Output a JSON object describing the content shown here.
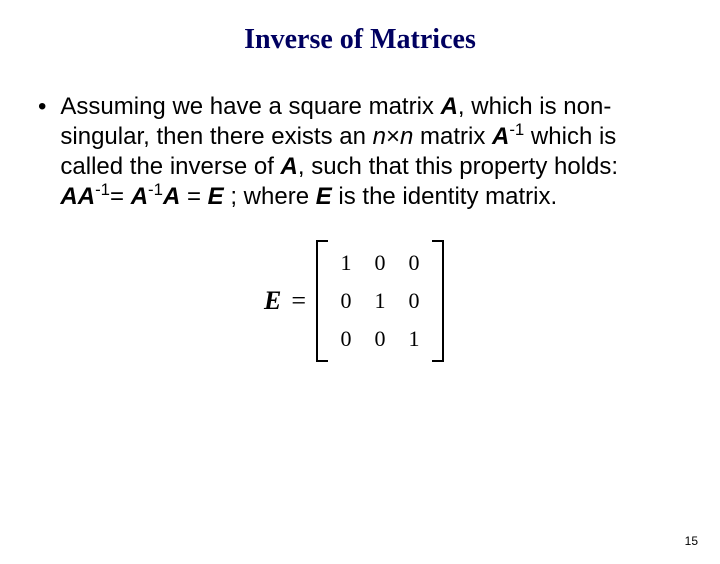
{
  "slide": {
    "title": "Inverse of Matrices",
    "title_color": "#000060",
    "title_font": "Times New Roman",
    "title_fontsize": 28,
    "body_fontsize": 24,
    "body_color": "#000000",
    "background_color": "#ffffff",
    "bullet_char": "•",
    "paragraph": {
      "a1": "Assuming we have a square matrix ",
      "A1": "A",
      "a2": ", which is non-singular, then there exists an ",
      "n": "n",
      "times": "×",
      "n2": "n",
      "a3": " matrix ",
      "A2": "A",
      "sup_neg1_a": "-1",
      "a4": " which is called the inverse of ",
      "A3": "A",
      "a5": ", such that this property holds:",
      "eq_AA": "AA",
      "eq_sup1": "-1",
      "eq_eq1": "= ",
      "eq_A": "A",
      "eq_sup2": "-1",
      "eq_A2": "A",
      "eq_eq2": " = ",
      "eq_E": "E",
      "eq_tail": " ; where ",
      "eq_E2": "E",
      "eq_tail2": " is the identity matrix."
    },
    "matrix": {
      "label": "E",
      "equals": "=",
      "rows": 3,
      "cols": 3,
      "values": [
        [
          "1",
          "0",
          "0"
        ],
        [
          "0",
          "1",
          "0"
        ],
        [
          "0",
          "0",
          "1"
        ]
      ],
      "bracket_color": "#000000",
      "cell_fontsize": 22,
      "col_gap": 22,
      "row_gap": 12
    },
    "page_number": "15",
    "page_number_fontsize": 12
  }
}
